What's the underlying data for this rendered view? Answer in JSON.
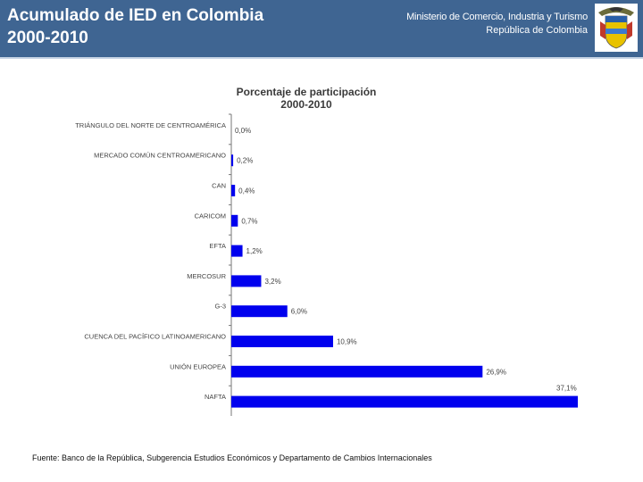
{
  "header": {
    "title_line1": "Acumulado de IED en Colombia",
    "title_line2": "2000-2010",
    "ministry_line1": "Ministerio de Comercio, Industria y Turismo",
    "ministry_line2": "República de Colombia",
    "seal_icon": "colombia-coat-of-arms-icon",
    "colors": {
      "banner": "#3f6592",
      "text": "#ffffff"
    }
  },
  "chart_data": {
    "type": "bar",
    "orientation": "horizontal",
    "title_line1": "Porcentaje de participación",
    "title_line2": "2000-2010",
    "categories": [
      "TRIÁNGULO DEL NORTE DE CENTROAMÉRICA",
      "MERCADO COMÚN CENTROAMERICANO",
      "CAN",
      "CARICOM",
      "EFTA",
      "MERCOSUR",
      "G-3",
      "CUENCA DEL PACÍFICO LATINOAMERICANO",
      "UNIÓN EUROPEA",
      "NAFTA"
    ],
    "values": [
      0.0,
      0.2,
      0.4,
      0.7,
      1.2,
      3.2,
      6.0,
      10.9,
      26.9,
      37.1
    ],
    "value_labels": [
      "0,0%",
      "0,2%",
      "0,4%",
      "0,7%",
      "1,2%",
      "3,2%",
      "6,0%",
      "10,9%",
      "26,9%",
      "37,1%"
    ],
    "xlim": [
      0,
      37.1
    ],
    "bar_color": "#0000ee",
    "grid": false,
    "legend": "none"
  },
  "footer": {
    "source": "Fuente: Banco de la República, Subgerencia Estudios Económicos y Departamento de Cambios Internacionales"
  }
}
